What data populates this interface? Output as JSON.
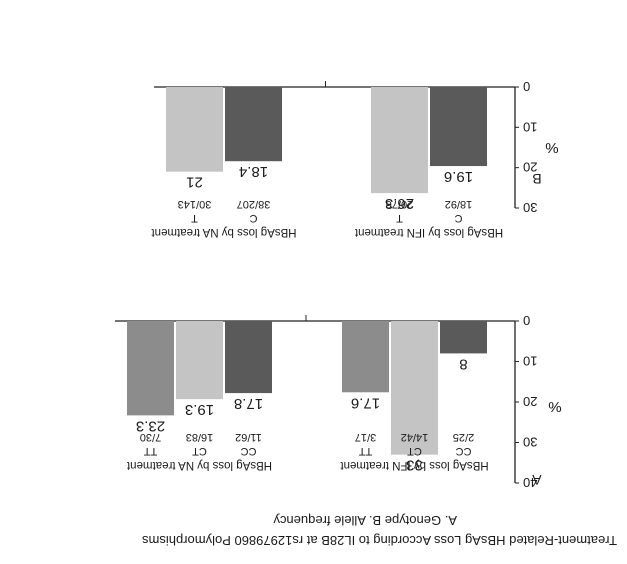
{
  "figure_title": "Treatment-Related HBsAg Loss According to IL28B at rs12979860 Polymorphisms",
  "figure_subtitle": "A. Genotype B. Allele frequency",
  "colors": {
    "dark": "#5a5a5a",
    "light": "#c4c4c4",
    "mid": "#8c8c8c",
    "axis": "#222222"
  },
  "chart_data": [
    {
      "panel_label": "A",
      "type": "bar",
      "ylabel": "%",
      "ylim": [
        0,
        40
      ],
      "yticks": [
        "0",
        "10",
        "20",
        "30",
        "40"
      ],
      "groups": [
        {
          "title": "HBsAg loss by IFN treatment",
          "categories": [
            "CC",
            "CT",
            "TT"
          ],
          "counts": [
            "2/25",
            "14/42",
            "3/17"
          ],
          "values": [
            8,
            33,
            17.6
          ],
          "value_labels": [
            "8",
            "33",
            "17.6"
          ]
        },
        {
          "title": "HBsAg loss by NA treatment",
          "categories": [
            "CC",
            "CT",
            "TT"
          ],
          "counts": [
            "11/62",
            "16/83",
            "7/30"
          ],
          "values": [
            17.8,
            19.3,
            23.3
          ],
          "value_labels": [
            "17.8",
            "19.3",
            "23.3"
          ]
        }
      ]
    },
    {
      "panel_label": "B",
      "type": "bar",
      "ylabel": "%",
      "ylim": [
        0,
        30
      ],
      "yticks": [
        "0",
        "10",
        "20",
        "30"
      ],
      "groups": [
        {
          "title": "HBsAg loss by IFN treatment",
          "categories": [
            "C",
            "T"
          ],
          "counts": [
            "18/92",
            "20/76"
          ],
          "values": [
            19.6,
            26.3
          ],
          "value_labels": [
            "19.6",
            "26.3"
          ]
        },
        {
          "title": "HBsAg loss by NA treatment",
          "categories": [
            "C",
            "T"
          ],
          "counts": [
            "38/207",
            "30/143"
          ],
          "values": [
            18.4,
            21
          ],
          "value_labels": [
            "18.4",
            "21"
          ]
        }
      ]
    }
  ]
}
